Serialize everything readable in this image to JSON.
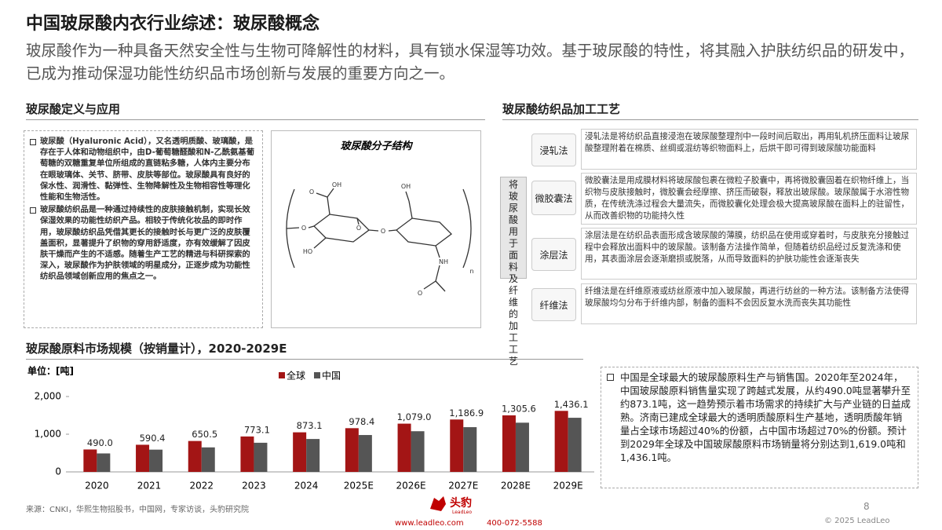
{
  "header": {
    "title": "中国玻尿酸内衣行业综述：玻尿酸概念",
    "subtitle": "玻尿酸作为一种具备天然安全性与生物可降解性的材料，具有锁水保湿等功效。基于玻尿酸的特性，将其融入护肤纺织品的研发中，已成为推动保湿功能性纺织品市场创新与发展的重要方向之一。"
  },
  "definition": {
    "heading": "玻尿酸定义与应用",
    "bullets": [
      "玻尿酸（Hyaluronic Acid），又名透明质酸、玻璃酸，是存在于人体和动物组织中，由D-葡萄糖醛酸和N-乙酰氨基葡萄糖的双糖重复单位所组成的直链粘多糖，人体内主要分布在眼玻璃体、关节、脐带、皮肤等部位。玻尿酸具有良好的保水性、润滑性、黏弹性、生物降解性及生物相容性等理化性能和生物活性。",
      "玻尿酸纺织品是一种通过持续性的皮肤接触机制，实现长效保湿效果的功能性纺织产品。相较于传统化妆品的即时作用，玻尿酸纺织品凭借其更长的接触时长与更广泛的皮肤覆盖面积，显著提升了织物的穿用舒适度，亦有效缓解了因皮肤干燥而产生的不适感。随着生产工艺的精进与科研探索的深入，玻尿酸作为护肤领域的明星成分，正逐步成为功能性纺织品领域创新应用的焦点之一。"
    ]
  },
  "molecule": {
    "caption": "玻尿酸分子结构",
    "labels": [
      "OH",
      "O",
      "O",
      "HO",
      "O",
      "OH",
      "O",
      "NH",
      "O",
      "n"
    ]
  },
  "process": {
    "heading": "玻尿酸纺织品加工工艺",
    "center_label": "将玻尿酸用于面料及纤维的加工工艺",
    "methods": [
      {
        "name": "浸轧法",
        "description": "浸轧法是将纺织品直接浸泡在玻尿酸整理剂中一段时间后取出，再用轧机挤压面料让玻尿酸整理附着在棉质、丝绸或混纺等织物面料上，后烘干即可得到玻尿酸功能面料"
      },
      {
        "name": "微胶囊法",
        "description": "微胶囊法是用成膜材料将玻尿酸包裹在微粒子胶囊中，再将微胶囊固着在织物纤维上，当织物与皮肤接触时，微胶囊会经摩擦、挤压而破裂，释放出玻尿酸。玻尿酸属于水溶性物质，在传统洗涤过程会大量流失，而微胶囊化处理会极大提高玻尿酸在面料上的驻留性，从而改善织物的功能持久性"
      },
      {
        "name": "涂层法",
        "description": "涂层法是在纺织品表面形成含玻尿酸的薄膜，纺织品在使用或穿着时，与皮肤充分接触过程中会释放出面料中的玻尿酸。该制备方法操作简单，但随着纺织品经过反复洗涤和使用，其表面涂层会逐渐磨损或脱落，从而导致面料的护肤功能性会逐渐丧失"
      },
      {
        "name": "纤维法",
        "description": "纤维法是在纤维原液或纺丝原液中加入玻尿酸，再进行纺丝的一种方法。该制备方法使得玻尿酸均匀分布于纤维内部，制备的面料不会因反复水洗而丧失其功能性"
      }
    ]
  },
  "chart_data": {
    "type": "bar",
    "title": "玻尿酸原料市场规模（按销量计），2020-2029E",
    "unit_label": "单位：[吨]",
    "categories": [
      "2020",
      "2021",
      "2022",
      "2023",
      "2024",
      "2025E",
      "2026E",
      "2027E",
      "2028E",
      "2029E"
    ],
    "series": [
      {
        "name": "全球",
        "color": "#a31515",
        "values": [
          595,
          720,
          820,
          940,
          1050,
          1160,
          1280,
          1390,
          1500,
          1619
        ]
      },
      {
        "name": "中国",
        "color": "#555555",
        "values": [
          490.0,
          590.4,
          650.5,
          773.1,
          873.1,
          978.4,
          1079.0,
          1186.9,
          1305.6,
          1436.1
        ],
        "value_labels": [
          "490.0",
          "590.4",
          "650.5",
          "773.1",
          "873.1",
          "978.4",
          "1,079.0",
          "1,186.9",
          "1,305.6",
          "1,436.1"
        ]
      }
    ],
    "ylim": [
      0,
      2000
    ],
    "yticks": [
      0,
      {
        "value": 1000,
        "label": "1,000"
      },
      {
        "value": 2000,
        "label": "2,000"
      }
    ]
  },
  "chart_note": "中国是全球最大的玻尿酸原料生产与销售国。2020年至2024年，中国玻尿酸原料销售量实现了跨越式发展，从约490.0吨显著攀升至约873.1吨，这一趋势预示着市场需求的持续扩大与产业链的日益成熟。济南已建成全球最大的透明质酸原料生产基地，透明质酸年销量占全球市场超过40%的份额，占中国市场超过70%的份额。预计到2029年全球及中国玻尿酸原料市场销量将分别达到1,619.0吨和1,436.1吨。",
  "footer": {
    "source": "来源：CNKI，华熙生物招股书，中国网，专家访谈，头豹研究院",
    "page": "8",
    "copyright": "© 2025 LeadLeo",
    "logo": "头豹",
    "logo_en": "LeadLeo",
    "website": "www.leadleo.com",
    "phone": "400-072-5588"
  }
}
